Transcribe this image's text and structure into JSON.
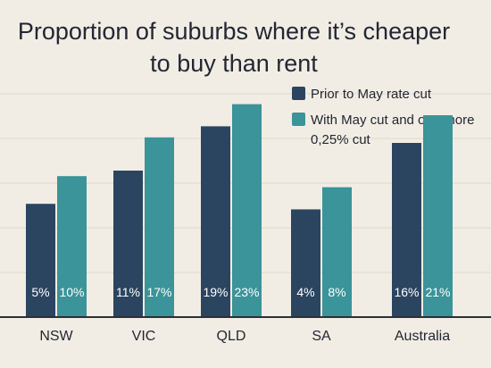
{
  "chart_data": {
    "type": "bar",
    "title_lines": [
      "Proportion of suburbs where it’s cheaper",
      "to buy than rent"
    ],
    "categories": [
      "NSW",
      "VIC",
      "QLD",
      "SA",
      "Australia"
    ],
    "series": [
      {
        "name": "Prior to May rate cut",
        "values": [
          5,
          11,
          19,
          4,
          16
        ],
        "labels": [
          "5%",
          "11%",
          "19%",
          "4%",
          "16%"
        ],
        "color": "#2b4560"
      },
      {
        "name_lines": [
          "With May cut and one more",
          "0,25% cut"
        ],
        "values": [
          10,
          17,
          23,
          8,
          21
        ],
        "labels": [
          "10%",
          "17%",
          "23%",
          "8%",
          "21%"
        ],
        "color": "#3a9499"
      }
    ],
    "grid": true,
    "legend": "top-right",
    "axis_color": "#2a2f3a",
    "grid_color": "#ddd6cb"
  }
}
